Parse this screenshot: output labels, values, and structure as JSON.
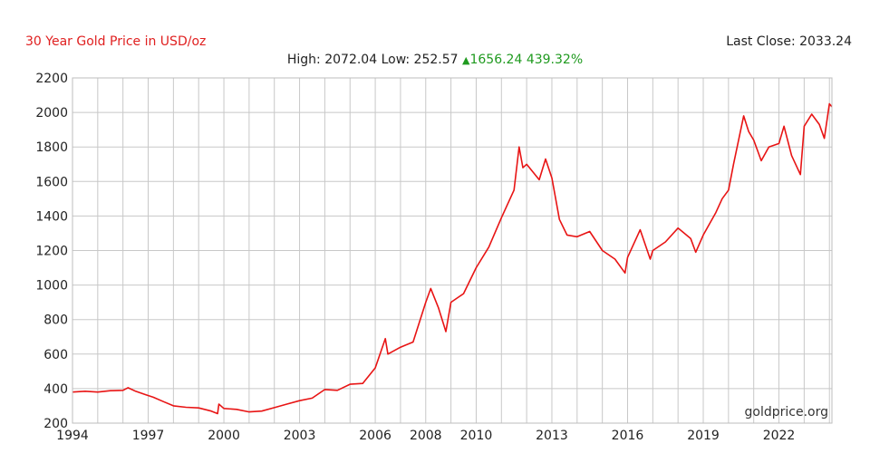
{
  "header": {
    "title": "30 Year Gold Price in USD/oz",
    "last_close_label": "Last Close: 2033.24",
    "high_label": "High: 2072.04",
    "low_label": "Low: 252.57",
    "change_value": "1656.24",
    "change_pct": "439.32%",
    "change_direction_icon": "up-triangle-icon"
  },
  "watermark": "goldprice.org",
  "colors": {
    "line": "#e81414",
    "title": "#e02020",
    "up": "#1f9a1f",
    "grid": "#c8c8c8"
  },
  "chart_data": {
    "type": "line",
    "title": "30 Year Gold Price in USD/oz",
    "xlabel": "",
    "ylabel": "",
    "xlim": [
      1994.0,
      2024.1
    ],
    "ylim": [
      200,
      2200
    ],
    "yticks": [
      200,
      400,
      600,
      800,
      1000,
      1200,
      1400,
      1600,
      1800,
      2000,
      2200
    ],
    "xtick_labels": [
      "1994",
      "1997",
      "2000",
      "2003",
      "2006",
      "2008",
      "2010",
      "2013",
      "2016",
      "2019",
      "2022"
    ],
    "xtick_positions": [
      1994,
      1997,
      2000,
      2003,
      2006,
      2008,
      2010,
      2013,
      2016,
      2019,
      2022
    ],
    "grid": true,
    "series": [
      {
        "x": [
          1994.0,
          1994.5,
          1995.0,
          1995.5,
          1996.0,
          1996.2,
          1996.5,
          1996.9,
          1997.2,
          1997.6,
          1998.0,
          1998.5,
          1999.0,
          1999.5,
          1999.75,
          1999.8,
          2000.0,
          2000.5,
          2001.0,
          2001.5,
          2002.0,
          2002.5,
          2003.0,
          2003.5,
          2004.0,
          2004.5,
          2005.0,
          2005.5,
          2006.0,
          2006.4,
          2006.5,
          2007.0,
          2007.5,
          2008.0,
          2008.2,
          2008.5,
          2008.8,
          2009.0,
          2009.5,
          2010.0,
          2010.5,
          2011.0,
          2011.5,
          2011.7,
          2011.85,
          2012.0,
          2012.5,
          2012.75,
          2013.0,
          2013.3,
          2013.6,
          2014.0,
          2014.5,
          2015.0,
          2015.5,
          2015.9,
          2016.0,
          2016.5,
          2016.9,
          2017.0,
          2017.5,
          2018.0,
          2018.5,
          2018.7,
          2019.0,
          2019.5,
          2019.75,
          2020.0,
          2020.2,
          2020.6,
          2020.8,
          2021.0,
          2021.3,
          2021.6,
          2022.0,
          2022.2,
          2022.5,
          2022.85,
          2023.0,
          2023.3,
          2023.6,
          2023.8,
          2024.0,
          2024.1
        ],
        "y": [
          380,
          385,
          380,
          388,
          390,
          405,
          385,
          365,
          350,
          325,
          300,
          292,
          288,
          270,
          255,
          310,
          285,
          280,
          265,
          270,
          290,
          310,
          330,
          345,
          395,
          390,
          425,
          430,
          520,
          690,
          600,
          640,
          670,
          900,
          980,
          870,
          730,
          900,
          950,
          1100,
          1220,
          1390,
          1550,
          1800,
          1680,
          1700,
          1610,
          1730,
          1620,
          1380,
          1290,
          1280,
          1310,
          1200,
          1150,
          1070,
          1160,
          1320,
          1150,
          1200,
          1250,
          1330,
          1270,
          1190,
          1290,
          1420,
          1500,
          1550,
          1700,
          1980,
          1890,
          1840,
          1720,
          1800,
          1820,
          1920,
          1750,
          1640,
          1920,
          1990,
          1930,
          1850,
          2050,
          2033
        ]
      }
    ]
  }
}
